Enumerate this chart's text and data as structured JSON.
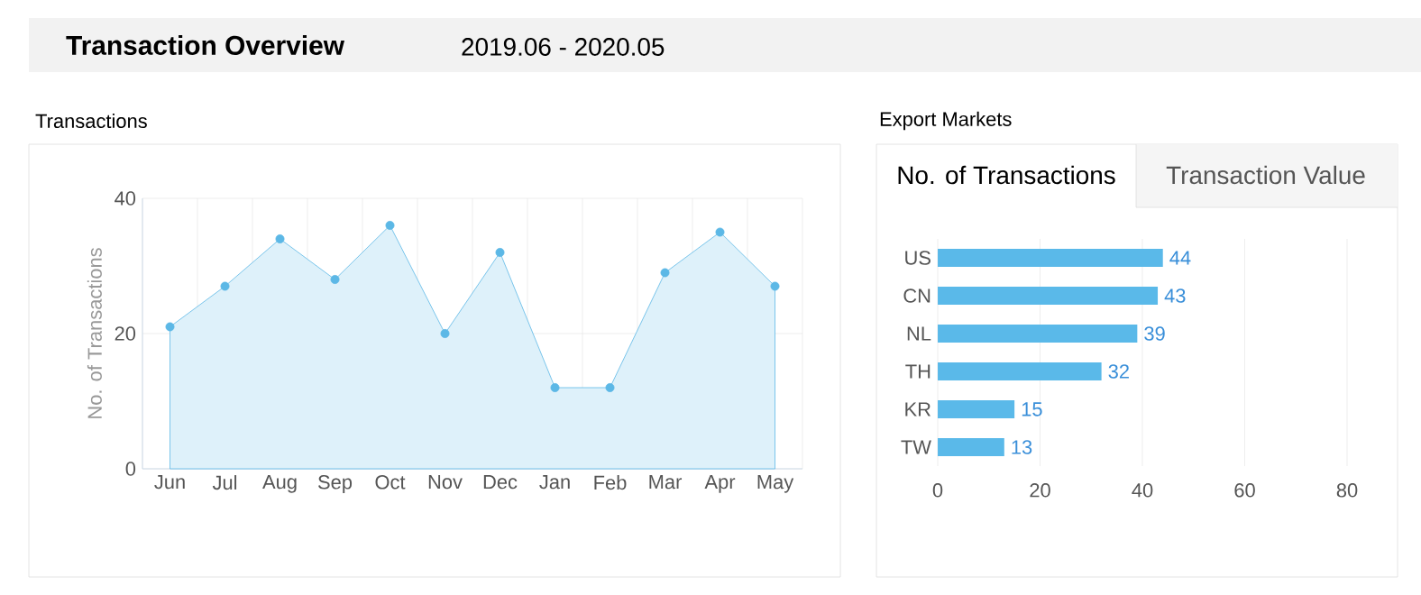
{
  "chart_data": [
    {
      "type": "other",
      "title": "Transaction Overview",
      "subtitle": "2019.06 - 2020.05"
    },
    {
      "type": "area",
      "title": "Transactions",
      "ylabel": "No. of Transactions",
      "categories": [
        "Jun",
        "Jul",
        "Aug",
        "Sep",
        "Oct",
        "Nov",
        "Dec",
        "Jan",
        "Feb",
        "Mar",
        "Apr",
        "May"
      ],
      "values": [
        21,
        27,
        34,
        28,
        36,
        20,
        32,
        12,
        12,
        29,
        35,
        27
      ],
      "color": "#5cb8e6",
      "ylim": [
        0,
        40
      ],
      "yticks": [
        0,
        20,
        40
      ],
      "grid": true,
      "marker": "circle"
    },
    {
      "type": "bar",
      "orientation": "horizontal",
      "title": "Export Markets",
      "subtitle": "No. of Transactions",
      "categories": [
        "US",
        "CN",
        "NL",
        "TH",
        "KR",
        "TW"
      ],
      "values": [
        44,
        43,
        39,
        32,
        15,
        13
      ],
      "color": "#5ab9e9",
      "xlim": [
        0,
        80
      ],
      "xticks": [
        0,
        20,
        40,
        60,
        80
      ],
      "grid": "x",
      "data_labels": true,
      "annotations": [
        "Transaction Value"
      ]
    }
  ]
}
